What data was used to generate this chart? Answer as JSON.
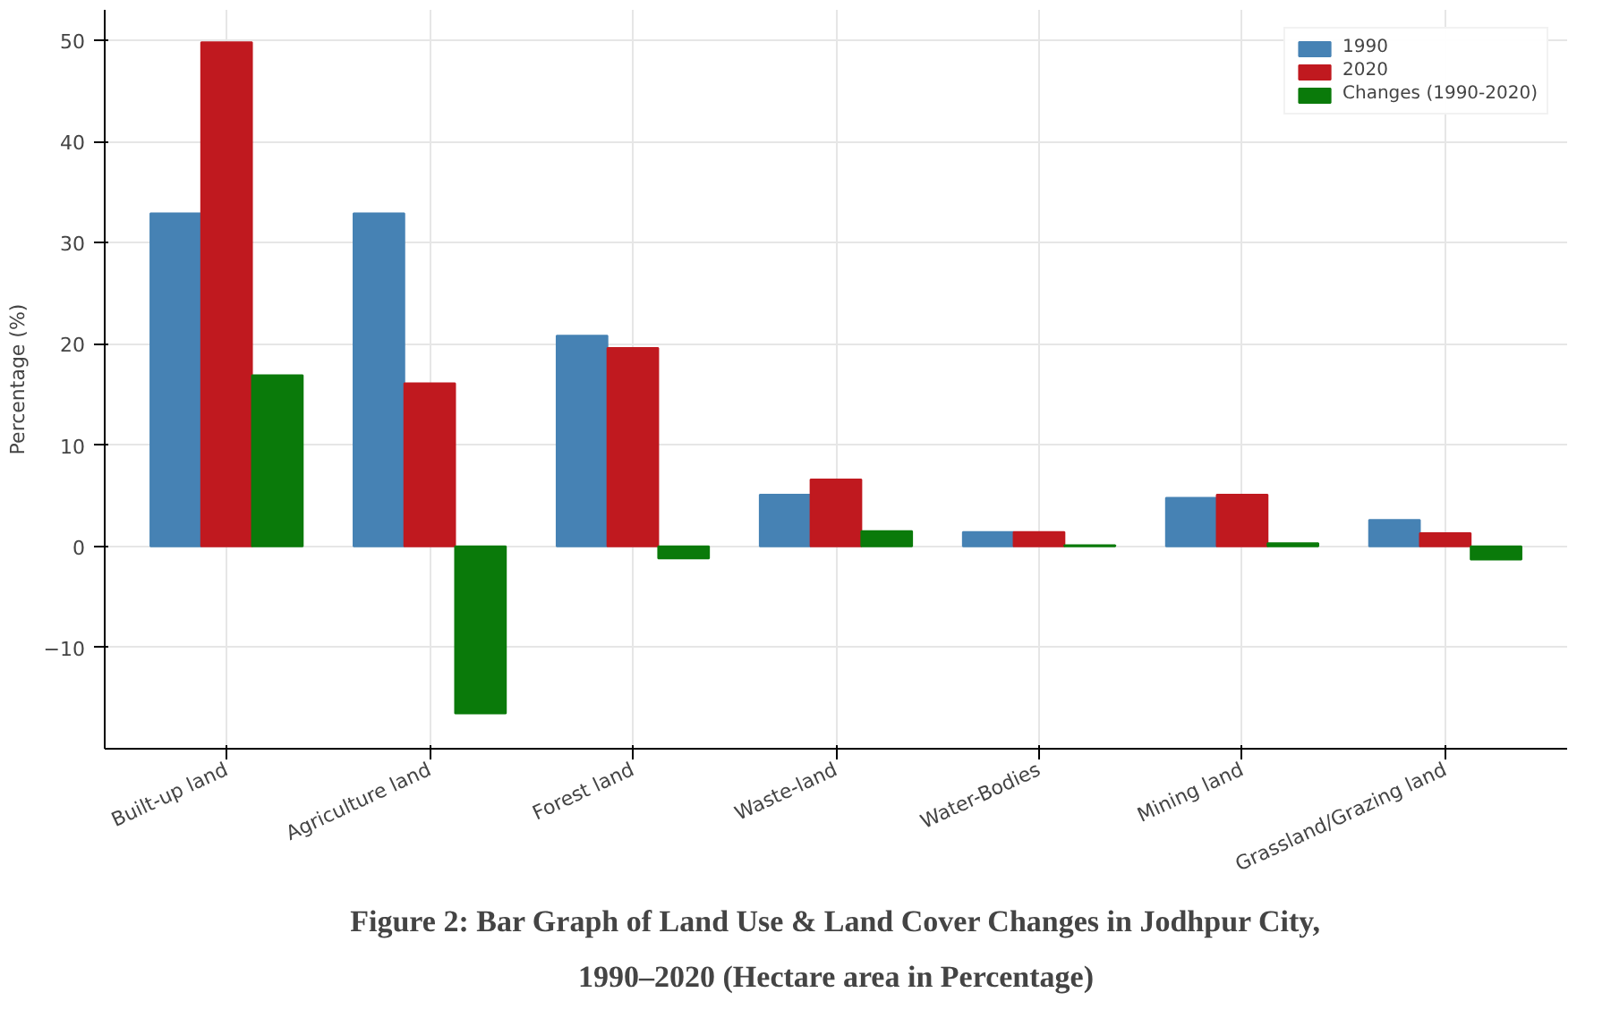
{
  "chart_data": {
    "type": "bar",
    "title": "Figure 2: Bar Graph of Land Use & Land Cover Changes in Jodhpur City,\n1990–2020 (Hectare area in Percentage)",
    "ylabel": "Percentage (%)",
    "categories": [
      "Built-up land",
      "Agriculture land",
      "Forest land",
      "Waste-land",
      "Water-Bodies",
      "Mining land",
      "Grassland/Grazing land"
    ],
    "series": [
      {
        "name": "1990",
        "color": "#4682b4",
        "values": [
          32.9,
          32.9,
          20.8,
          5.1,
          1.4,
          4.8,
          2.6
        ]
      },
      {
        "name": "2020",
        "color": "#c0191f",
        "values": [
          49.8,
          16.1,
          19.6,
          6.6,
          1.4,
          5.1,
          1.3
        ]
      },
      {
        "name": "Changes (1990-2020)",
        "color": "#0a7a0a",
        "values": [
          16.9,
          -16.5,
          -1.2,
          1.5,
          0.1,
          0.3,
          -1.3
        ]
      }
    ],
    "ylim": [
      -20,
      53
    ],
    "yticks": [
      -10,
      0,
      10,
      20,
      30,
      40,
      50
    ],
    "grid": true,
    "legend": "top right"
  }
}
